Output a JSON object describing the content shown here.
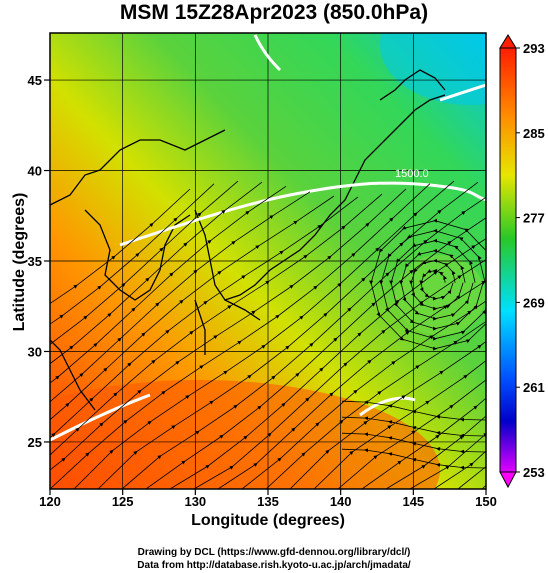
{
  "title": "MSM 15Z28Apr2023 (850.0hPa)",
  "xlabel": "Longitude (degrees)",
  "ylabel": "Latitude  (degrees)",
  "credit_line1": "Drawing by DCL (https://www.gfd-dennou.org/library/dcl/)",
  "credit_line2": "Data from http://database.rish.kyoto-u.ac.jp/arch/jmadata/",
  "contour_label": "1500.0",
  "chart_data": {
    "type": "map",
    "xlim": [
      120,
      150
    ],
    "ylim": [
      22.4,
      47.6
    ],
    "x_ticks": [
      120,
      125,
      130,
      135,
      140,
      145,
      150
    ],
    "y_ticks": [
      25,
      30,
      35,
      40,
      45
    ],
    "colorbar": {
      "min": 253,
      "max": 293,
      "tick_labels": [
        "293",
        "285",
        "277",
        "269",
        "261",
        "253"
      ],
      "colors": [
        "#ff1e00",
        "#ff8c00",
        "#e6e600",
        "#28c828",
        "#00e0ff",
        "#0050ff",
        "#0000c8",
        "#e000ff"
      ]
    },
    "cyclone_center": [
      146.5,
      33.8
    ]
  }
}
